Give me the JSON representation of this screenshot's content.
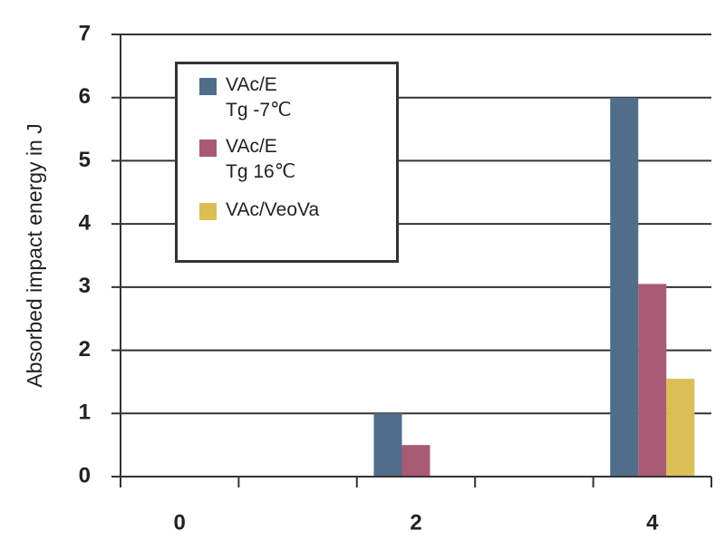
{
  "chart_data": {
    "type": "bar",
    "y_label": "Absorbed impact energy in J",
    "categories": [
      "0",
      null,
      "2",
      null,
      "4"
    ],
    "series": [
      {
        "name": "VAc/E\nTg -7℃",
        "color": "#506d89",
        "values": [
          0,
          null,
          1,
          null,
          6
        ]
      },
      {
        "name": "VAc/E\nTg 16℃",
        "color": "#a95a75",
        "values": [
          0,
          null,
          0.5,
          null,
          3.05
        ]
      },
      {
        "name": "VAc/VeoVa",
        "color": "#d9bf56",
        "values": [
          0,
          null,
          0,
          null,
          1.55
        ]
      }
    ],
    "ylim": [
      0,
      7
    ],
    "yticks": [
      0,
      1,
      2,
      3,
      4,
      5,
      6,
      7
    ],
    "grid": true
  }
}
